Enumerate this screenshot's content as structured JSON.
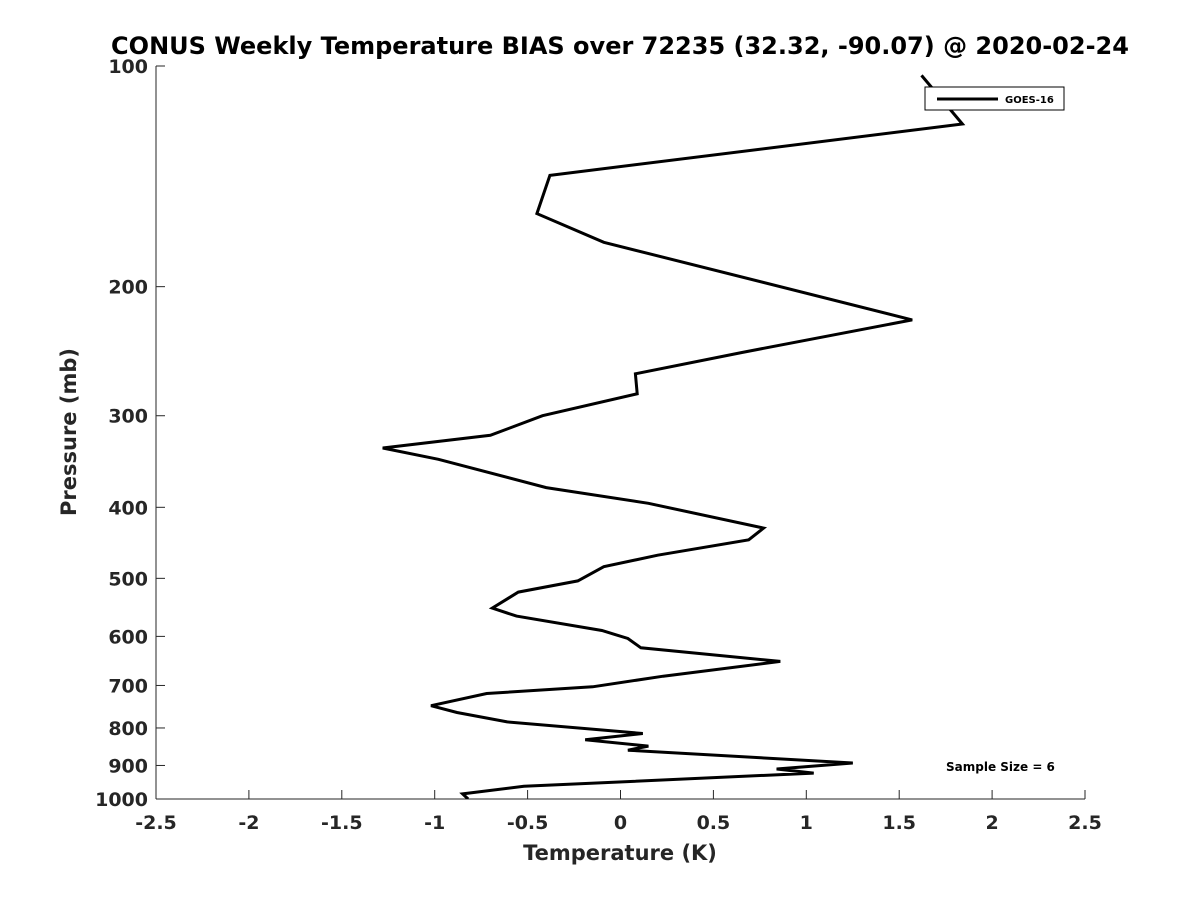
{
  "chart_data": {
    "type": "line",
    "title": "CONUS Weekly Temperature BIAS over 72235 (32.32, -90.07) @ 2020-02-24",
    "xlabel": "Temperature (K)",
    "ylabel": "Pressure (mb)",
    "xlim": [
      -2.5,
      2.5
    ],
    "ylim": [
      100,
      1000
    ],
    "y_scale": "log",
    "y_reversed": true,
    "grid": false,
    "legend_position": "top-right",
    "x_ticks": [
      "-2.5",
      "-2",
      "-1.5",
      "-1",
      "-0.5",
      "0",
      "0.5",
      "1",
      "1.5",
      "2",
      "2.5"
    ],
    "y_ticks": [
      "100",
      "200",
      "300",
      "400",
      "500",
      "600",
      "700",
      "800",
      "900",
      "1000"
    ],
    "series": [
      {
        "name": "GOES-16",
        "color": "#000000",
        "points": [
          [
            -0.82,
            1000
          ],
          [
            -0.85,
            984
          ],
          [
            -0.52,
            961
          ],
          [
            1.04,
            922
          ],
          [
            0.84,
            910
          ],
          [
            1.25,
            893
          ],
          [
            0.04,
            858
          ],
          [
            0.15,
            847
          ],
          [
            -0.19,
            830
          ],
          [
            0.12,
            814
          ],
          [
            -0.61,
            785
          ],
          [
            -0.88,
            762
          ],
          [
            -1.02,
            746
          ],
          [
            -0.72,
            718
          ],
          [
            -0.15,
            703
          ],
          [
            0.23,
            680
          ],
          [
            0.86,
            649
          ],
          [
            0.11,
            622
          ],
          [
            0.04,
            604
          ],
          [
            -0.1,
            589
          ],
          [
            -0.56,
            563
          ],
          [
            -0.69,
            549
          ],
          [
            -0.55,
            522
          ],
          [
            -0.23,
            504
          ],
          [
            -0.09,
            482
          ],
          [
            0.2,
            465
          ],
          [
            0.69,
            443
          ],
          [
            0.77,
            427
          ],
          [
            0.15,
            395
          ],
          [
            -0.4,
            376
          ],
          [
            -0.98,
            344
          ],
          [
            -1.28,
            332
          ],
          [
            -0.7,
            319
          ],
          [
            -0.42,
            300
          ],
          [
            0.09,
            280
          ],
          [
            0.08,
            263
          ],
          [
            0.65,
            246
          ],
          [
            1.57,
            222
          ],
          [
            -0.09,
            174
          ],
          [
            -0.45,
            159
          ],
          [
            -0.38,
            141
          ],
          [
            1.84,
            120
          ],
          [
            1.62,
            103
          ]
        ]
      }
    ],
    "annotations": [
      "Sample Size = 6"
    ]
  }
}
